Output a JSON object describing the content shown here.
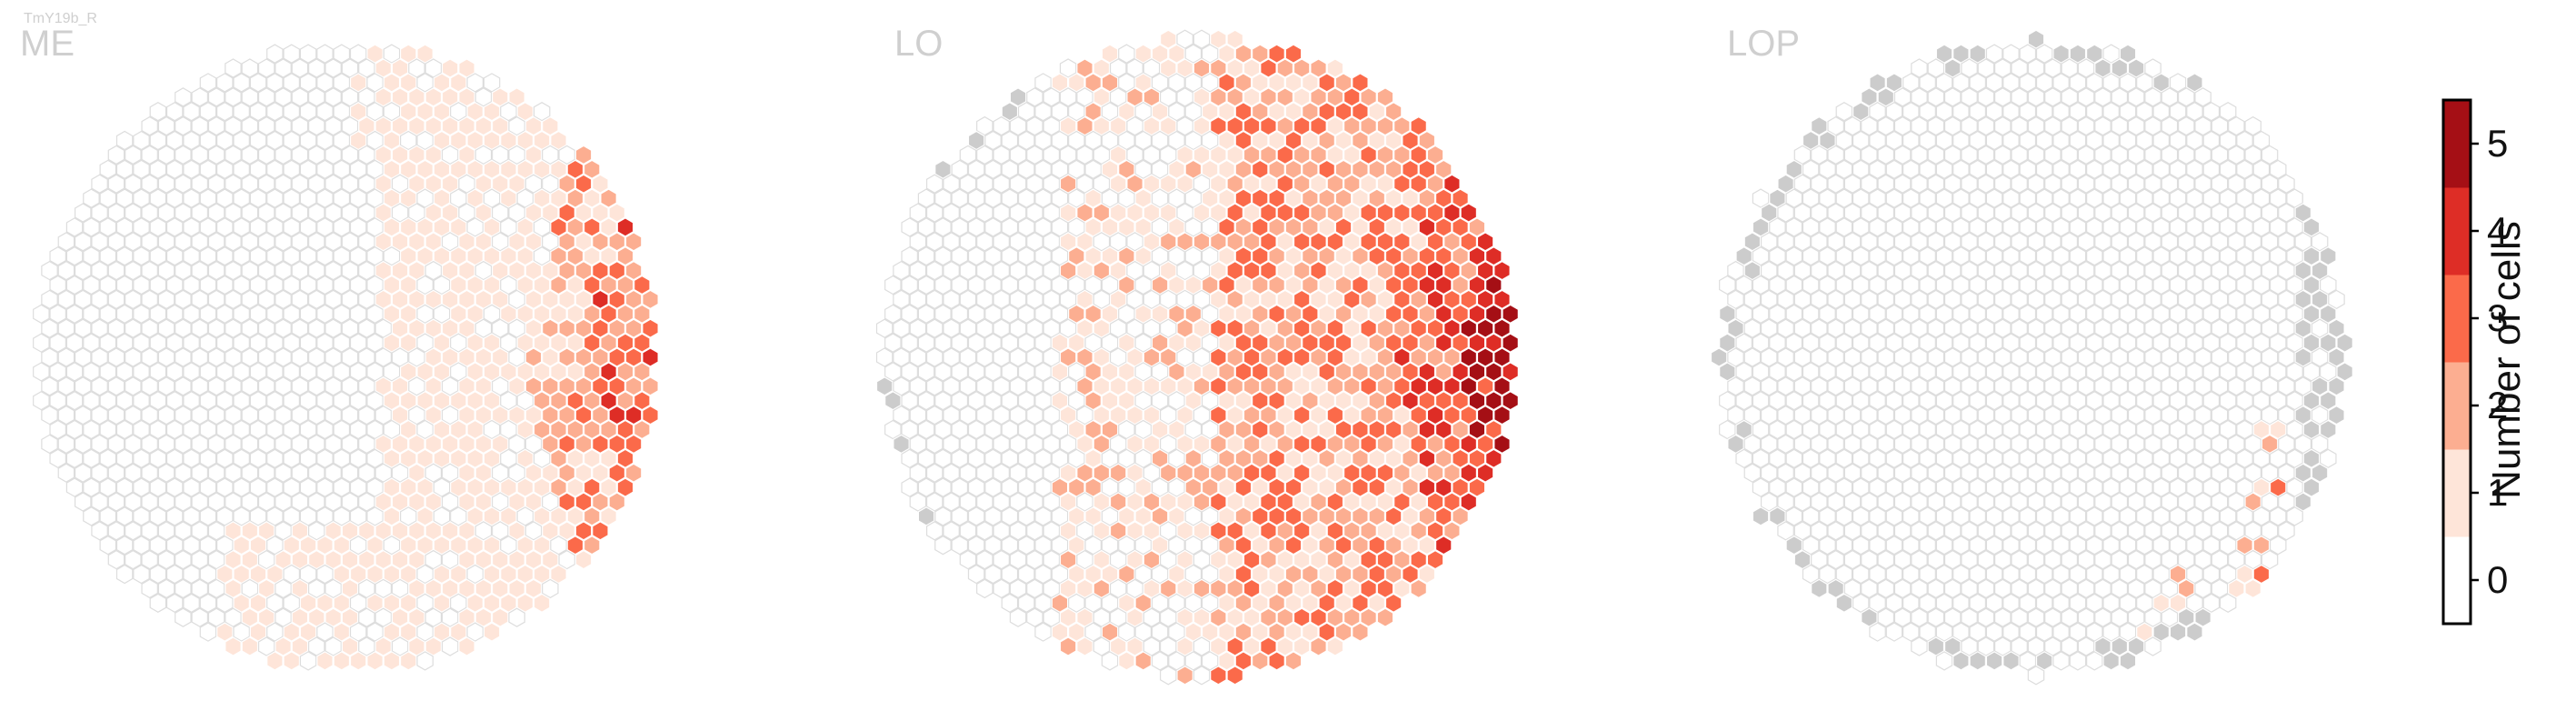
{
  "cell_type": "TmY19b_R",
  "chart_data": [
    {
      "type": "heatmap",
      "title": "ME",
      "description_of_values": "Hexagonal column map; most columns 0–1 cells, a dense rim of 2–5 cells along the right edge.",
      "distribution": {
        "0": 0.55,
        "1": 0.3,
        "2": 0.09,
        "3": 0.05,
        "4": 0.008,
        "5": 0.002
      }
    },
    {
      "type": "heatmap",
      "title": "LO",
      "description_of_values": "Hexagonal column map; values rise toward the right edge, where many columns reach 4–5 cells.",
      "distribution": {
        "0": 0.4,
        "1": 0.28,
        "2": 0.14,
        "3": 0.1,
        "4": 0.05,
        "5": 0.03
      }
    },
    {
      "type": "heatmap",
      "title": "LOP",
      "description_of_values": "Hexagonal column map; almost all columns 0, a few 1–3 near the right edge, grey columns on the border.",
      "distribution": {
        "0": 0.95,
        "1": 0.03,
        "2": 0.015,
        "3": 0.005,
        "4": 0,
        "5": 0
      }
    }
  ],
  "colorbar": {
    "label": "Number of cells",
    "ticks": [
      "0",
      "1",
      "2",
      "3",
      "4",
      "5"
    ],
    "colors": [
      "#ffffff",
      "#fee5d9",
      "#fcae91",
      "#fb6a4a",
      "#de2d26",
      "#a50f15"
    ]
  },
  "missing_color": "#cccccc",
  "hex_outline": "#dddddd"
}
